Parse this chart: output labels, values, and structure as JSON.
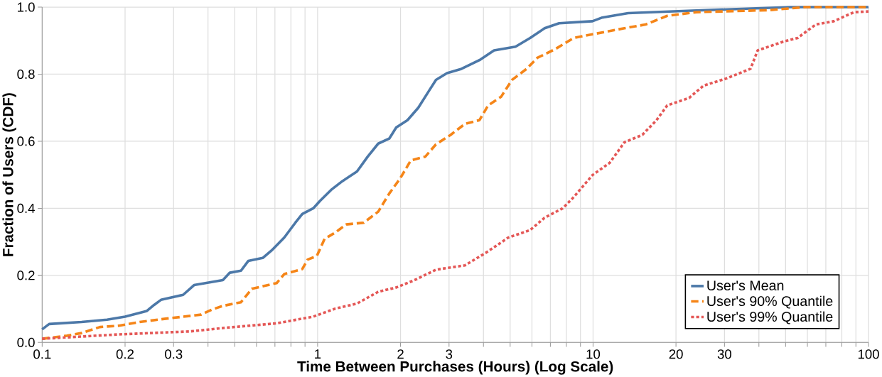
{
  "chart_data": {
    "type": "line",
    "xlabel": "Time Between Purchases (Hours) (Log Scale)",
    "ylabel": "Fraction of Users (CDF)",
    "log": "x",
    "grid": true,
    "legend": "bottom right",
    "xlim": [
      0.1,
      100
    ],
    "ylim": [
      0,
      1
    ],
    "xticks": [
      0.1,
      0.2,
      0.3,
      {
        "value": 0.4,
        "label": null
      },
      {
        "value": 0.5,
        "label": null
      },
      {
        "value": 0.6,
        "label": null
      },
      {
        "value": 0.7,
        "label": null
      },
      {
        "value": 0.8,
        "label": null
      },
      {
        "value": 0.9,
        "label": null
      },
      1,
      2,
      3,
      {
        "value": 4,
        "label": null
      },
      {
        "value": 5,
        "label": null
      },
      {
        "value": 6,
        "label": null
      },
      {
        "value": 7,
        "label": null
      },
      {
        "value": 8,
        "label": null
      },
      {
        "value": 9,
        "label": null
      },
      10,
      20,
      30,
      {
        "value": 40,
        "label": null
      },
      {
        "value": 50,
        "label": null
      },
      {
        "value": 60,
        "label": null
      },
      {
        "value": 70,
        "label": null
      },
      {
        "value": 80,
        "label": null
      },
      {
        "value": 90,
        "label": null
      },
      100
    ],
    "yticks": [
      {
        "value": 0,
        "label": "0.0"
      },
      0.2,
      0.4,
      0.6,
      0.8,
      {
        "value": 1,
        "label": "1.0"
      }
    ],
    "series": [
      {
        "name": "User's Mean",
        "color": "#4c78a8",
        "line_style": "solid",
        "x": [
          0.1,
          0.106,
          0.139,
          0.172,
          0.2,
          0.24,
          0.255,
          0.27,
          0.325,
          0.356,
          0.453,
          0.48,
          0.527,
          0.56,
          0.632,
          0.68,
          0.757,
          0.83,
          0.88,
          0.964,
          1.02,
          1.12,
          1.23,
          1.39,
          1.52,
          1.66,
          1.82,
          1.93,
          2.12,
          2.32,
          2.54,
          2.69,
          2.95,
          3.33,
          3.87,
          4.37,
          5.23,
          5.91,
          6.67,
          7.53,
          9.95,
          10.8,
          13.4,
          23.7,
          52,
          100
        ],
        "values": [
          0.039,
          0.055,
          0.061,
          0.068,
          0.077,
          0.094,
          0.112,
          0.127,
          0.142,
          0.171,
          0.186,
          0.208,
          0.214,
          0.243,
          0.252,
          0.274,
          0.313,
          0.357,
          0.383,
          0.4,
          0.422,
          0.455,
          0.481,
          0.51,
          0.554,
          0.593,
          0.608,
          0.641,
          0.663,
          0.7,
          0.751,
          0.783,
          0.803,
          0.816,
          0.842,
          0.871,
          0.882,
          0.908,
          0.937,
          0.952,
          0.958,
          0.969,
          0.982,
          0.99,
          1.0,
          1.0
        ]
      },
      {
        "name": "User's 90% Quantile",
        "color": "#f58518",
        "line_style": "dashed",
        "x": [
          0.1,
          0.123,
          0.139,
          0.162,
          0.19,
          0.226,
          0.288,
          0.378,
          0.413,
          0.453,
          0.527,
          0.577,
          0.71,
          0.757,
          0.88,
          0.92,
          0.994,
          1.06,
          1.16,
          1.27,
          1.47,
          1.66,
          1.82,
          1.99,
          2.18,
          2.46,
          2.69,
          3.04,
          3.43,
          3.87,
          4.16,
          4.64,
          5.08,
          5.74,
          6.28,
          7.3,
          8.5,
          9.95,
          13,
          15.5,
          18.6,
          23.7,
          43.4,
          58.8,
          100
        ],
        "values": [
          0.011,
          0.02,
          0.028,
          0.046,
          0.05,
          0.061,
          0.072,
          0.083,
          0.098,
          0.109,
          0.12,
          0.16,
          0.177,
          0.204,
          0.219,
          0.247,
          0.258,
          0.309,
          0.328,
          0.352,
          0.357,
          0.39,
          0.444,
          0.488,
          0.543,
          0.554,
          0.591,
          0.619,
          0.652,
          0.663,
          0.707,
          0.733,
          0.783,
          0.816,
          0.849,
          0.875,
          0.908,
          0.919,
          0.937,
          0.948,
          0.974,
          0.985,
          0.991,
          1.0,
          1.0
        ]
      },
      {
        "name": "User's 99% Quantile",
        "color": "#e45756",
        "line_style": "dotted",
        "x": [
          0.1,
          0.19,
          0.345,
          0.467,
          0.71,
          0.964,
          1.16,
          1.39,
          1.66,
          1.93,
          2.25,
          2.69,
          3.43,
          4.11,
          4.93,
          5.91,
          6.67,
          7.76,
          8.5,
          9.95,
          11.5,
          13,
          15.1,
          17,
          18.6,
          22.3,
          25.2,
          30.2,
          37.3,
          39.6,
          49,
          55.3,
          64.3,
          74.8,
          88.7,
          100
        ],
        "values": [
          0.011,
          0.024,
          0.033,
          0.044,
          0.057,
          0.077,
          0.101,
          0.116,
          0.151,
          0.164,
          0.186,
          0.217,
          0.23,
          0.269,
          0.313,
          0.335,
          0.372,
          0.4,
          0.433,
          0.499,
          0.536,
          0.597,
          0.619,
          0.663,
          0.707,
          0.729,
          0.766,
          0.786,
          0.816,
          0.871,
          0.897,
          0.908,
          0.948,
          0.958,
          0.985,
          0.987
        ]
      }
    ]
  }
}
